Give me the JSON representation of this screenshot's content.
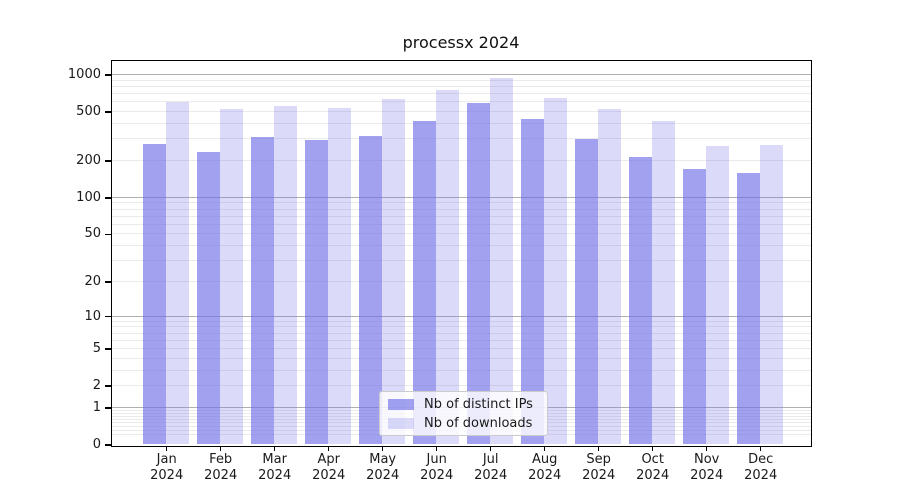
{
  "figure": {
    "background": "#ffffff"
  },
  "chart_data": {
    "type": "bar",
    "title": "processx 2024",
    "x_axis": {
      "categories": [
        "Jan",
        "Feb",
        "Mar",
        "Apr",
        "May",
        "Jun",
        "Jul",
        "Aug",
        "Sep",
        "Oct",
        "Nov",
        "Dec"
      ],
      "year": "2024"
    },
    "y_axis": {
      "scale": "log1p",
      "ticks": [
        0,
        1,
        2,
        5,
        10,
        20,
        50,
        100,
        200,
        500,
        1000
      ],
      "major_gridlines": [
        1,
        10,
        100,
        1000
      ],
      "range": [
        0,
        1325
      ]
    },
    "series": [
      {
        "name": "Nb of distinct IPs",
        "color": "rgba(110,110,230,0.65)",
        "values": [
          270,
          235,
          312,
          294,
          316,
          419,
          590,
          438,
          298,
          212,
          171,
          158
        ]
      },
      {
        "name": "Nb of downloads",
        "color": "rgba(110,110,230,0.25)",
        "values": [
          595,
          528,
          558,
          535,
          637,
          745,
          945,
          640,
          528,
          419,
          262,
          268
        ]
      }
    ],
    "grid": true,
    "legend_position": "lower center",
    "colors": {
      "grid_major": "#b0b0b0",
      "grid_minor": "#eaeaea",
      "spine": "#000000",
      "text": "#1a1a1a",
      "legend_border": "#cccccc"
    }
  }
}
